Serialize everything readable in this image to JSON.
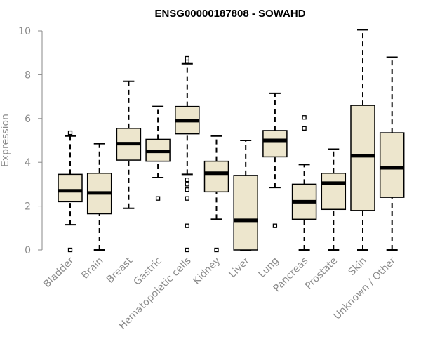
{
  "chart_data": {
    "type": "boxplot",
    "title": "ENSG00000187808 - SOWAHD",
    "xlabel": "",
    "ylabel": "Expression",
    "ylim": [
      0,
      10
    ],
    "yticks": [
      "0",
      "2",
      "4",
      "6",
      "8",
      "10"
    ],
    "colors": {
      "box_fill": "#ede6cd",
      "stroke": "#000000",
      "axis": "#8a8a8a",
      "label": "#8a8a8a"
    },
    "categories": [
      "Bladder",
      "Brain",
      "Breast",
      "Gastric",
      "Hematopoietic cells",
      "Kidney",
      "Liver",
      "Lung",
      "Pancreas",
      "Prostate",
      "Skin",
      "Unknown / Other"
    ],
    "boxes": [
      {
        "name": "Bladder",
        "min": 1.15,
        "q1": 2.2,
        "median": 2.7,
        "q3": 3.45,
        "max": 5.2,
        "outliers": [
          0.0,
          5.35
        ]
      },
      {
        "name": "Brain",
        "min": 0.0,
        "q1": 1.65,
        "median": 2.6,
        "q3": 3.5,
        "max": 4.85,
        "outliers": []
      },
      {
        "name": "Breast",
        "min": 1.9,
        "q1": 4.1,
        "median": 4.85,
        "q3": 5.55,
        "max": 7.7,
        "outliers": []
      },
      {
        "name": "Gastric",
        "min": 3.3,
        "q1": 4.05,
        "median": 4.5,
        "q3": 5.05,
        "max": 6.55,
        "outliers": [
          2.35
        ]
      },
      {
        "name": "Hematopoietic cells",
        "min": 3.45,
        "q1": 5.3,
        "median": 5.9,
        "q3": 6.55,
        "max": 8.5,
        "outliers": [
          0.0,
          1.1,
          2.35,
          2.75,
          3.0,
          3.2,
          8.6,
          8.75
        ]
      },
      {
        "name": "Kidney",
        "min": 1.4,
        "q1": 2.65,
        "median": 3.5,
        "q3": 4.05,
        "max": 5.2,
        "outliers": [
          0.0
        ]
      },
      {
        "name": "Liver",
        "min": 0.0,
        "q1": 0.0,
        "median": 1.35,
        "q3": 3.4,
        "max": 5.0,
        "outliers": []
      },
      {
        "name": "Lung",
        "min": 2.85,
        "q1": 4.25,
        "median": 5.0,
        "q3": 5.45,
        "max": 7.15,
        "outliers": [
          1.1
        ]
      },
      {
        "name": "Pancreas",
        "min": 0.0,
        "q1": 1.4,
        "median": 2.2,
        "q3": 3.0,
        "max": 3.9,
        "outliers": [
          5.55,
          6.05
        ]
      },
      {
        "name": "Prostate",
        "min": 0.0,
        "q1": 1.85,
        "median": 3.05,
        "q3": 3.5,
        "max": 4.6,
        "outliers": []
      },
      {
        "name": "Skin",
        "min": 0.0,
        "q1": 1.8,
        "median": 4.3,
        "q3": 6.6,
        "max": 10.05,
        "outliers": []
      },
      {
        "name": "Unknown / Other",
        "min": 0.0,
        "q1": 2.4,
        "median": 3.75,
        "q3": 5.35,
        "max": 8.8,
        "outliers": []
      }
    ]
  }
}
